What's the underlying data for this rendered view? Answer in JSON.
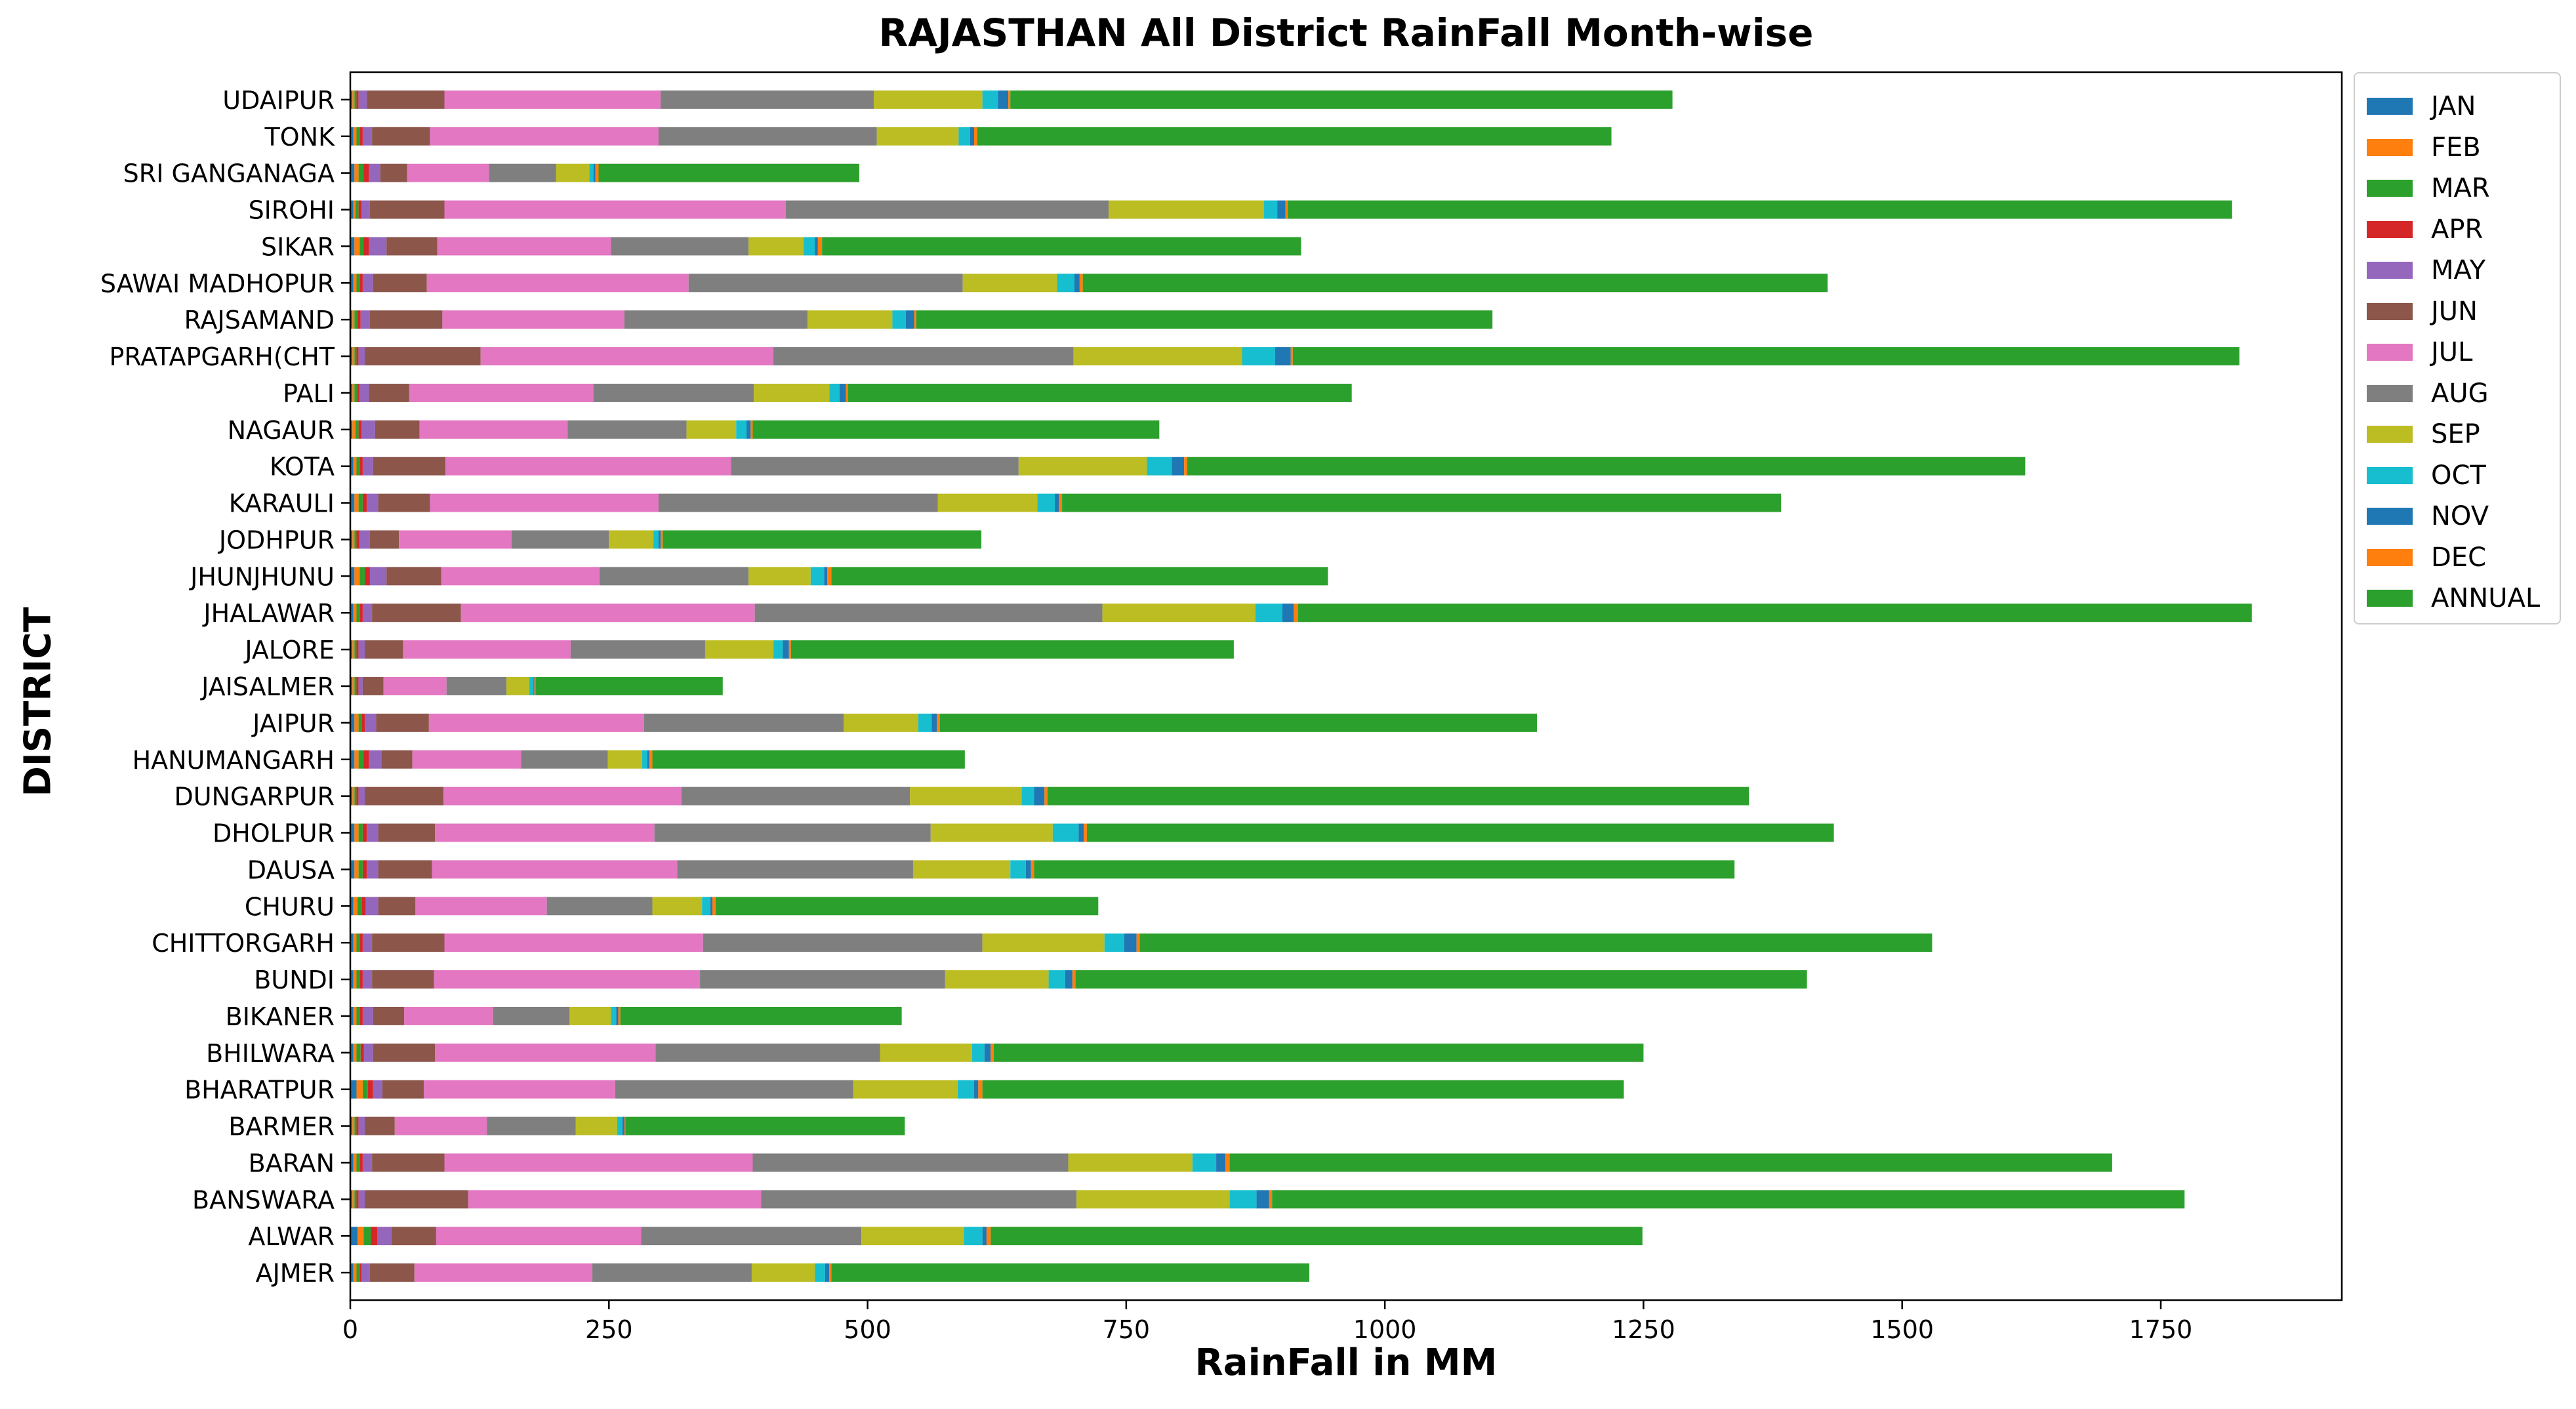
{
  "chart_data": {
    "type": "bar",
    "orientation": "horizontal",
    "stacked": true,
    "title": "RAJASTHAN All District RainFall Month-wise",
    "xlabel": "RainFall in MM",
    "ylabel": "DISTRICT",
    "xlim": [
      0,
      1925
    ],
    "xticks": [
      0,
      250,
      500,
      750,
      1000,
      1250,
      1500,
      1750
    ],
    "legend_position": "upper-right-outside",
    "categories": [
      "AJMER",
      "ALWAR",
      "BANSWARA",
      "BARAN",
      "BARMER",
      "BHARATPUR",
      "BHILWARA",
      "BIKANER",
      "BUNDI",
      "CHITTORGARH",
      "CHURU",
      "DAUSA",
      "DHOLPUR",
      "DUNGARPUR",
      "HANUMANGARH",
      "JAIPUR",
      "JAISALMER",
      "JALORE",
      "JHALAWAR",
      "JHUNJHUNU",
      "JODHPUR",
      "KARAULI",
      "KOTA",
      "NAGAUR",
      "PALI",
      "PRATAPGARH(CHT",
      "RAJSAMAND",
      "SAWAI MADHOPUR",
      "SIKAR",
      "SIROHI",
      "SRI GANGANAGA",
      "TONK",
      "UDAIPUR"
    ],
    "series": [
      {
        "name": "JAN",
        "color": "#1f77b4",
        "values": [
          3,
          7,
          2,
          3,
          2,
          6,
          3,
          3,
          3,
          3,
          3,
          4,
          4,
          2,
          4,
          4,
          2,
          2,
          3,
          4,
          2,
          4,
          3,
          2,
          2,
          2,
          2,
          3,
          4,
          3,
          4,
          3,
          2
        ]
      },
      {
        "name": "FEB",
        "color": "#ff7f0e",
        "values": [
          3,
          6,
          2,
          3,
          2,
          6,
          3,
          3,
          3,
          3,
          4,
          4,
          4,
          2,
          4,
          4,
          2,
          2,
          3,
          5,
          2,
          4,
          3,
          3,
          2,
          2,
          2,
          3,
          5,
          2,
          4,
          3,
          2
        ]
      },
      {
        "name": "MAR",
        "color": "#2ca02c",
        "values": [
          3,
          7,
          2,
          3,
          2,
          5,
          4,
          3,
          3,
          3,
          4,
          4,
          4,
          2,
          5,
          3,
          2,
          2,
          3,
          5,
          2,
          4,
          3,
          3,
          3,
          2,
          3,
          3,
          4,
          3,
          5,
          3,
          2
        ]
      },
      {
        "name": "APR",
        "color": "#d62728",
        "values": [
          2,
          6,
          2,
          3,
          2,
          5,
          3,
          3,
          3,
          3,
          4,
          4,
          4,
          2,
          5,
          3,
          2,
          2,
          3,
          5,
          3,
          4,
          3,
          3,
          2,
          2,
          3,
          3,
          5,
          3,
          5,
          3,
          2
        ]
      },
      {
        "name": "MAY",
        "color": "#9467bd",
        "values": [
          8,
          14,
          6,
          9,
          6,
          9,
          9,
          10,
          9,
          9,
          12,
          11,
          11,
          6,
          12,
          11,
          4,
          6,
          9,
          16,
          10,
          11,
          10,
          13,
          9,
          6,
          9,
          10,
          17,
          8,
          11,
          9,
          8
        ]
      },
      {
        "name": "JUN",
        "color": "#8c564b",
        "values": [
          43,
          43,
          100,
          70,
          29,
          40,
          60,
          30,
          60,
          70,
          36,
          52,
          55,
          76,
          30,
          51,
          20,
          37,
          86,
          53,
          28,
          50,
          70,
          43,
          39,
          112,
          70,
          52,
          49,
          72,
          26,
          56,
          75
        ]
      },
      {
        "name": "JUL",
        "color": "#e377c2",
        "values": [
          172,
          198,
          283,
          298,
          89,
          185,
          213,
          86,
          257,
          250,
          127,
          237,
          212,
          230,
          105,
          208,
          61,
          162,
          284,
          153,
          109,
          221,
          276,
          143,
          178,
          283,
          176,
          253,
          168,
          330,
          79,
          221,
          209
        ]
      },
      {
        "name": "AUG",
        "color": "#7f7f7f",
        "values": [
          154,
          213,
          305,
          305,
          86,
          230,
          217,
          74,
          237,
          270,
          102,
          228,
          267,
          221,
          84,
          193,
          58,
          130,
          336,
          144,
          94,
          270,
          278,
          115,
          155,
          290,
          177,
          265,
          133,
          312,
          65,
          211,
          206
        ]
      },
      {
        "name": "SEP",
        "color": "#bcbd22",
        "values": [
          61,
          99,
          148,
          120,
          40,
          101,
          89,
          40,
          100,
          118,
          48,
          94,
          118,
          108,
          33,
          72,
          22,
          66,
          148,
          60,
          43,
          96,
          124,
          48,
          73,
          163,
          82,
          91,
          53,
          150,
          32,
          79,
          105
        ]
      },
      {
        "name": "OCT",
        "color": "#17becf",
        "values": [
          10,
          18,
          26,
          23,
          5,
          16,
          12,
          5,
          16,
          19,
          8,
          15,
          25,
          12,
          5,
          13,
          4,
          9,
          26,
          13,
          5,
          17,
          24,
          10,
          10,
          32,
          13,
          17,
          11,
          13,
          4,
          11,
          15
        ]
      },
      {
        "name": "NOV",
        "color": "#1f77b4",
        "values": [
          4,
          4,
          12,
          9,
          2,
          4,
          6,
          2,
          7,
          12,
          2,
          5,
          5,
          10,
          2,
          5,
          1,
          6,
          11,
          3,
          2,
          4,
          12,
          4,
          6,
          15,
          8,
          5,
          3,
          8,
          2,
          4,
          10
        ]
      },
      {
        "name": "DEC",
        "color": "#ff7f0e",
        "values": [
          2,
          4,
          3,
          4,
          1,
          4,
          3,
          2,
          3,
          3,
          3,
          3,
          3,
          3,
          3,
          3,
          1,
          2,
          4,
          4,
          2,
          3,
          3,
          2,
          2,
          2,
          2,
          3,
          4,
          2,
          3,
          3,
          2
        ]
      },
      {
        "name": "ANNUAL",
        "color": "#2ca02c",
        "values": [
          462,
          630,
          882,
          853,
          270,
          620,
          628,
          272,
          707,
          766,
          370,
          677,
          722,
          678,
          302,
          577,
          181,
          428,
          922,
          480,
          308,
          695,
          810,
          393,
          487,
          915,
          557,
          720,
          463,
          913,
          252,
          613,
          640
        ]
      }
    ]
  },
  "legend": {
    "items": [
      {
        "label": "JAN",
        "color": "#1f77b4"
      },
      {
        "label": "FEB",
        "color": "#ff7f0e"
      },
      {
        "label": "MAR",
        "color": "#2ca02c"
      },
      {
        "label": "APR",
        "color": "#d62728"
      },
      {
        "label": "MAY",
        "color": "#9467bd"
      },
      {
        "label": "JUN",
        "color": "#8c564b"
      },
      {
        "label": "JUL",
        "color": "#e377c2"
      },
      {
        "label": "AUG",
        "color": "#7f7f7f"
      },
      {
        "label": "SEP",
        "color": "#bcbd22"
      },
      {
        "label": "OCT",
        "color": "#17becf"
      },
      {
        "label": "NOV",
        "color": "#1f77b4"
      },
      {
        "label": "DEC",
        "color": "#ff7f0e"
      },
      {
        "label": "ANNUAL",
        "color": "#2ca02c"
      }
    ]
  }
}
